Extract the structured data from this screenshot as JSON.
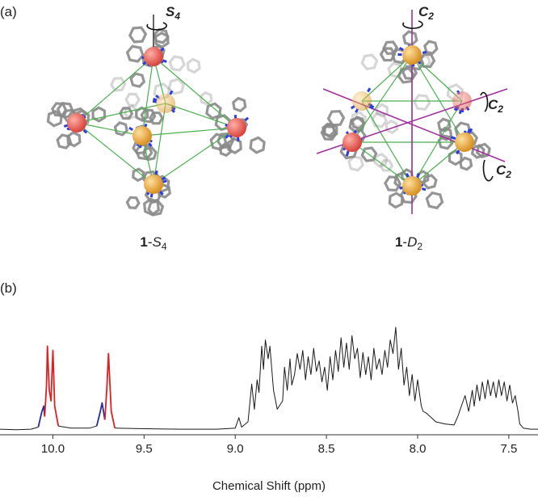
{
  "panel_labels": [
    "(a)",
    "(b)"
  ],
  "compounds": [
    {
      "parts": [
        "1",
        "-",
        "S",
        "4"
      ]
    },
    {
      "parts": [
        "1",
        "-",
        "D",
        "2"
      ]
    }
  ],
  "axis_symbols": [
    {
      "parts": [
        "S",
        "4"
      ]
    },
    {
      "parts": [
        "C",
        "2"
      ]
    },
    {
      "parts": [
        "C",
        "2"
      ]
    },
    {
      "parts": [
        "C",
        "2"
      ]
    }
  ],
  "chart_data": {
    "type": "line",
    "xlabel": "Chemical Shift (ppm)",
    "xlim": [
      10.29,
      7.34
    ],
    "ylim": [
      0,
      100
    ],
    "xticks": [
      {
        "value": 10,
        "label": "10.0"
      },
      9.5,
      {
        "value": 9,
        "label": "9.0"
      },
      8.5,
      {
        "value": 8,
        "label": "8.0"
      },
      7.5
    ],
    "series": [
      {
        "color": "#1a1a1a",
        "x": [
          10.29,
          10.2,
          10.12,
          10.08,
          10.06,
          9.97,
          9.9,
          9.8,
          9.76,
          9.74,
          9.66,
          9.5,
          9.3,
          9.1,
          9.0,
          8.98,
          8.965,
          8.93,
          8.91,
          8.895,
          8.88,
          8.87,
          8.855,
          8.845,
          8.835,
          8.82,
          8.81,
          8.79,
          8.77,
          8.74,
          8.73,
          8.715,
          8.7,
          8.69,
          8.675,
          8.66,
          8.645,
          8.63,
          8.615,
          8.6,
          8.585,
          8.57,
          8.555,
          8.54,
          8.525,
          8.51,
          8.495,
          8.48,
          8.465,
          8.45,
          8.435,
          8.42,
          8.405,
          8.39,
          8.375,
          8.36,
          8.345,
          8.33,
          8.315,
          8.3,
          8.285,
          8.27,
          8.255,
          8.24,
          8.225,
          8.21,
          8.195,
          8.18,
          8.165,
          8.15,
          8.135,
          8.12,
          8.105,
          8.09,
          8.075,
          8.06,
          8.045,
          8.03,
          8.015,
          8.0,
          7.98,
          7.97,
          7.95,
          7.9,
          7.85,
          7.8,
          7.78,
          7.75,
          7.74,
          7.72,
          7.7,
          7.69,
          7.675,
          7.66,
          7.645,
          7.63,
          7.615,
          7.6,
          7.585,
          7.57,
          7.555,
          7.54,
          7.525,
          7.51,
          7.495,
          7.48,
          7.465,
          7.45,
          7.44,
          7.42,
          7.38,
          7.34
        ],
        "values": [
          3,
          2.5,
          3,
          5,
          null,
          6,
          4,
          4,
          6,
          null,
          4,
          3.5,
          3,
          3,
          4,
          14,
          5,
          10,
          46,
          22,
          50,
          38,
          82,
          60,
          88,
          70,
          82,
          40,
          22,
          30,
          62,
          40,
          70,
          45,
          55,
          75,
          60,
          78,
          50,
          72,
          55,
          80,
          58,
          68,
          48,
          62,
          40,
          72,
          50,
          78,
          58,
          90,
          62,
          85,
          60,
          92,
          70,
          80,
          52,
          76,
          55,
          72,
          50,
          80,
          60,
          70,
          55,
          78,
          62,
          88,
          75,
          100,
          60,
          80,
          45,
          62,
          35,
          55,
          30,
          50,
          25,
          20,
          18,
          10,
          8,
          7,
          15,
          30,
          35,
          20,
          40,
          25,
          45,
          30,
          48,
          32,
          50,
          35,
          48,
          33,
          50,
          35,
          48,
          30,
          45,
          28,
          35,
          20,
          8,
          4,
          3,
          3
        ]
      },
      {
        "color": "#2b2b9c",
        "x": [
          10.08,
          10.06,
          10.05,
          10.045
        ],
        "values": [
          5,
          20,
          25,
          15
        ]
      },
      {
        "color": "#e02020",
        "x": [
          10.045,
          10.035,
          10.03,
          10.02,
          10.01,
          10.005,
          10.0,
          9.99,
          9.97
        ],
        "values": [
          15,
          45,
          82,
          40,
          30,
          55,
          78,
          25,
          6
        ]
      },
      {
        "color": "#2b2b9c",
        "x": [
          9.76,
          9.74,
          9.73,
          9.715
        ],
        "values": [
          6,
          20,
          28,
          12
        ]
      },
      {
        "color": "#e02020",
        "x": [
          9.715,
          9.705,
          9.695,
          9.68,
          9.66
        ],
        "values": [
          12,
          40,
          75,
          20,
          4
        ]
      }
    ]
  }
}
